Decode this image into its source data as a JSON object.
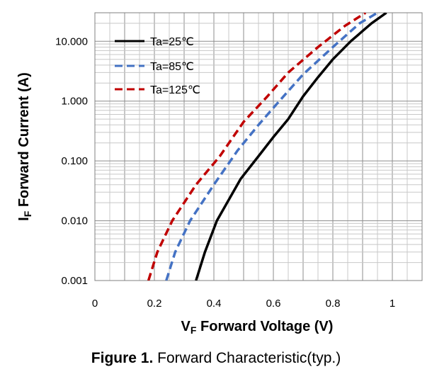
{
  "chart_data": {
    "type": "line",
    "title": "",
    "xlabel": {
      "main": "V",
      "sub": "F",
      "rest": " Forward Voltage (V)"
    },
    "ylabel": {
      "main": "I",
      "sub": "F",
      "rest": " Forward Current (A)"
    },
    "xlim": [
      0,
      1.1
    ],
    "ylim": [
      0.001,
      30
    ],
    "yscale": "log",
    "grid": true,
    "x_ticks": [
      0,
      0.2,
      0.4,
      0.6,
      0.8,
      1.0
    ],
    "x_tick_labels": [
      "0",
      "0.2",
      "0.4",
      "0.6",
      "0.8",
      "1"
    ],
    "y_ticks": [
      0.001,
      0.01,
      0.1,
      1,
      10
    ],
    "y_tick_labels": [
      "0.001",
      "0.010",
      "0.100",
      "1.000",
      "10.000"
    ],
    "legend_position": "top-left",
    "series": [
      {
        "name": "Ta=25℃",
        "color": "#000000",
        "style": "solid",
        "points": [
          [
            0.34,
            0.001
          ],
          [
            0.37,
            0.003
          ],
          [
            0.41,
            0.01
          ],
          [
            0.49,
            0.05
          ],
          [
            0.55,
            0.12
          ],
          [
            0.6,
            0.25
          ],
          [
            0.65,
            0.5
          ],
          [
            0.7,
            1.2
          ],
          [
            0.75,
            2.5
          ],
          [
            0.8,
            5.0
          ],
          [
            0.86,
            10.0
          ],
          [
            0.93,
            20.0
          ],
          [
            0.98,
            30.0
          ]
        ]
      },
      {
        "name": "Ta=85℃",
        "color": "#4472C4",
        "style": "dashed",
        "points": [
          [
            0.24,
            0.001
          ],
          [
            0.27,
            0.003
          ],
          [
            0.32,
            0.01
          ],
          [
            0.4,
            0.04
          ],
          [
            0.48,
            0.15
          ],
          [
            0.55,
            0.4
          ],
          [
            0.62,
            1.0
          ],
          [
            0.7,
            2.8
          ],
          [
            0.8,
            8.0
          ],
          [
            0.89,
            20.0
          ],
          [
            0.95,
            30.0
          ]
        ]
      },
      {
        "name": "Ta=125℃",
        "color": "#C00000",
        "style": "dashed",
        "points": [
          [
            0.18,
            0.001
          ],
          [
            0.21,
            0.003
          ],
          [
            0.26,
            0.01
          ],
          [
            0.34,
            0.04
          ],
          [
            0.42,
            0.12
          ],
          [
            0.5,
            0.45
          ],
          [
            0.58,
            1.2
          ],
          [
            0.65,
            3.0
          ],
          [
            0.75,
            8.0
          ],
          [
            0.84,
            18.0
          ],
          [
            0.91,
            30.0
          ]
        ]
      }
    ]
  },
  "caption": {
    "label": "Figure 1.",
    "text": " Forward Characteristic(typ.)"
  }
}
